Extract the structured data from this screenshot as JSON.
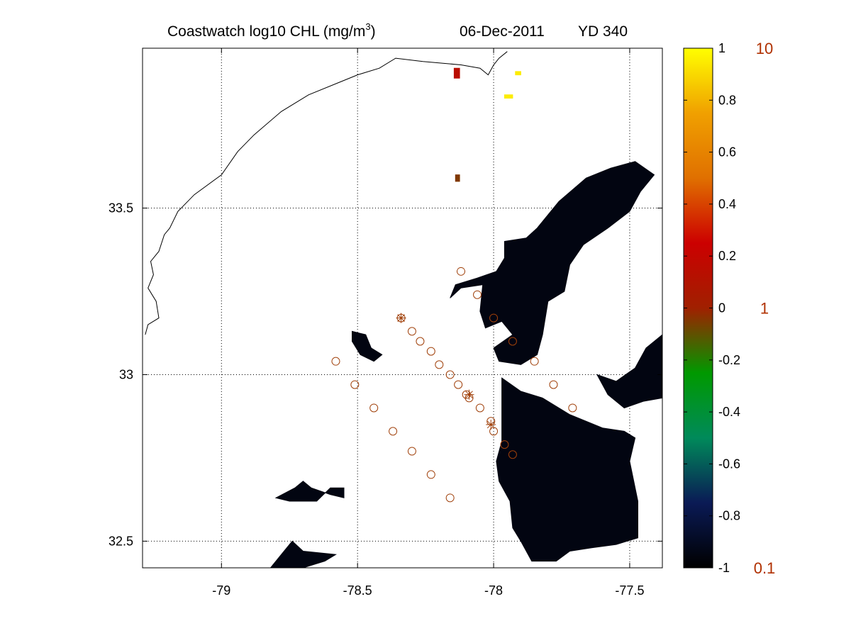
{
  "title": {
    "main": "Coastwatch  log10  CHL (mg/m",
    "superscript": "3",
    "close": ")",
    "date": "06-Dec-2011",
    "yearday": "YD 340"
  },
  "chart_data": {
    "type": "map",
    "x_axis": {
      "range": [
        -79.29,
        -77.38
      ],
      "ticks": [
        -79,
        -78.5,
        -78,
        -77.5
      ],
      "tick_labels": [
        "-79",
        "-78.5",
        "-78",
        "-77.5"
      ],
      "grid": true
    },
    "y_axis": {
      "range": [
        32.42,
        33.98
      ],
      "ticks": [
        32.5,
        33,
        33.5
      ],
      "tick_labels": [
        "32.5",
        "33",
        "33.5"
      ],
      "grid": true
    },
    "colorbar": {
      "range": [
        -1,
        1
      ],
      "ticks": [
        1,
        0.8,
        0.6,
        0.4,
        0.2,
        0,
        -0.2,
        -0.4,
        -0.6,
        -0.8,
        -1
      ],
      "tick_labels": [
        "1",
        "0.8",
        "0.6",
        "0.4",
        "0.2",
        "0",
        "-0.2",
        "-0.4",
        "-0.6",
        "-0.8",
        "-1"
      ],
      "secondary_labels": [
        {
          "value": 1,
          "label": "10"
        },
        {
          "value": 0,
          "label": "1"
        },
        {
          "value": -1,
          "label": "0.1"
        }
      ],
      "secondary_label_color": "#b03000",
      "colors": [
        "#000000",
        "#0a1a55",
        "#008a5a",
        "#009900",
        "#a02000",
        "#cc0000",
        "#e07000",
        "#f0a000",
        "#ffff00"
      ]
    },
    "stations": {
      "marker": "circle",
      "color": "#a0400a",
      "points": [
        [
          -78.12,
          33.31
        ],
        [
          -78.06,
          33.24
        ],
        [
          -78.0,
          33.17
        ],
        [
          -77.93,
          33.1
        ],
        [
          -77.85,
          33.04
        ],
        [
          -77.78,
          32.97
        ],
        [
          -77.71,
          32.9
        ],
        [
          -78.34,
          33.17
        ],
        [
          -78.3,
          33.13
        ],
        [
          -78.27,
          33.1
        ],
        [
          -78.23,
          33.07
        ],
        [
          -78.2,
          33.03
        ],
        [
          -78.16,
          33.0
        ],
        [
          -78.13,
          32.97
        ],
        [
          -78.1,
          32.94
        ],
        [
          -78.09,
          32.93
        ],
        [
          -78.05,
          32.9
        ],
        [
          -78.01,
          32.86
        ],
        [
          -78.0,
          32.83
        ],
        [
          -77.96,
          32.79
        ],
        [
          -77.93,
          32.76
        ],
        [
          -78.58,
          33.04
        ],
        [
          -78.51,
          32.97
        ],
        [
          -78.44,
          32.9
        ],
        [
          -78.37,
          32.83
        ],
        [
          -78.3,
          32.77
        ],
        [
          -78.23,
          32.7
        ],
        [
          -78.16,
          32.63
        ]
      ],
      "starred": [
        [
          -78.34,
          33.17
        ],
        [
          -78.09,
          32.94
        ],
        [
          -78.01,
          32.85
        ]
      ]
    },
    "chl_patches": [
      {
        "value": -0.95,
        "outline": [
          [
            -77.96,
            33.4
          ],
          [
            -77.88,
            33.41
          ],
          [
            -77.84,
            33.44
          ],
          [
            -77.76,
            33.52
          ],
          [
            -77.66,
            33.59
          ],
          [
            -77.57,
            33.62
          ],
          [
            -77.48,
            33.64
          ],
          [
            -77.41,
            33.6
          ],
          [
            -77.46,
            33.55
          ],
          [
            -77.5,
            33.49
          ],
          [
            -77.58,
            33.44
          ],
          [
            -77.67,
            33.39
          ],
          [
            -77.72,
            33.33
          ],
          [
            -77.74,
            33.25
          ],
          [
            -77.8,
            33.22
          ],
          [
            -77.82,
            33.12
          ],
          [
            -77.84,
            33.06
          ],
          [
            -77.9,
            33.03
          ],
          [
            -77.98,
            33.04
          ],
          [
            -78.0,
            33.08
          ],
          [
            -77.93,
            33.12
          ],
          [
            -77.97,
            33.16
          ],
          [
            -78.03,
            33.14
          ],
          [
            -78.05,
            33.19
          ],
          [
            -78.04,
            33.27
          ],
          [
            -78.12,
            33.26
          ],
          [
            -78.16,
            33.23
          ],
          [
            -78.14,
            33.27
          ],
          [
            -78.06,
            33.29
          ],
          [
            -77.99,
            33.31
          ],
          [
            -77.96,
            33.35
          ]
        ]
      },
      {
        "value": -0.95,
        "outline": [
          [
            -77.97,
            32.99
          ],
          [
            -77.9,
            32.95
          ],
          [
            -77.82,
            32.93
          ],
          [
            -77.72,
            32.88
          ],
          [
            -77.6,
            32.84
          ],
          [
            -77.52,
            32.83
          ],
          [
            -77.48,
            32.81
          ],
          [
            -77.5,
            32.74
          ],
          [
            -77.47,
            32.62
          ],
          [
            -77.47,
            32.51
          ],
          [
            -77.55,
            32.49
          ],
          [
            -77.64,
            32.48
          ],
          [
            -77.72,
            32.47
          ],
          [
            -77.77,
            32.44
          ],
          [
            -77.86,
            32.44
          ],
          [
            -77.9,
            32.5
          ],
          [
            -77.93,
            32.54
          ],
          [
            -77.94,
            32.62
          ],
          [
            -77.98,
            32.68
          ],
          [
            -77.99,
            32.74
          ],
          [
            -77.97,
            32.8
          ],
          [
            -77.97,
            32.88
          ],
          [
            -77.97,
            32.95
          ]
        ]
      },
      {
        "value": -0.95,
        "outline": [
          [
            -77.62,
            33.0
          ],
          [
            -77.55,
            32.98
          ],
          [
            -77.48,
            33.02
          ],
          [
            -77.44,
            33.08
          ],
          [
            -77.38,
            33.12
          ],
          [
            -77.38,
            32.93
          ],
          [
            -77.45,
            32.92
          ],
          [
            -77.52,
            32.9
          ],
          [
            -77.58,
            32.94
          ]
        ]
      },
      {
        "value": -0.95,
        "outline": [
          [
            -78.52,
            33.13
          ],
          [
            -78.47,
            33.12
          ],
          [
            -78.45,
            33.08
          ],
          [
            -78.41,
            33.06
          ],
          [
            -78.44,
            33.04
          ],
          [
            -78.49,
            33.06
          ],
          [
            -78.52,
            33.1
          ]
        ]
      },
      {
        "value": -0.95,
        "outline": [
          [
            -78.7,
            32.68
          ],
          [
            -78.67,
            32.66
          ],
          [
            -78.6,
            32.64
          ],
          [
            -78.55,
            32.63
          ],
          [
            -78.55,
            32.66
          ],
          [
            -78.6,
            32.66
          ],
          [
            -78.65,
            32.62
          ],
          [
            -78.75,
            32.62
          ],
          [
            -78.8,
            32.63
          ],
          [
            -78.73,
            32.66
          ]
        ]
      },
      {
        "value": -0.95,
        "outline": [
          [
            -78.74,
            32.5
          ],
          [
            -78.7,
            32.47
          ],
          [
            -78.58,
            32.46
          ],
          [
            -78.62,
            32.44
          ],
          [
            -78.7,
            32.42
          ],
          [
            -78.82,
            32.42
          ],
          [
            -78.78,
            32.46
          ]
        ]
      },
      {
        "value": 0.15,
        "outline": [
          [
            -78.145,
            33.92
          ],
          [
            -78.125,
            33.92
          ],
          [
            -78.125,
            33.89
          ],
          [
            -78.145,
            33.89
          ]
        ]
      },
      {
        "value": -0.05,
        "outline": [
          [
            -78.14,
            33.58
          ],
          [
            -78.125,
            33.58
          ],
          [
            -78.125,
            33.6
          ],
          [
            -78.14,
            33.6
          ]
        ]
      },
      {
        "value": 0.95,
        "outline": [
          [
            -77.92,
            33.9
          ],
          [
            -77.9,
            33.9
          ],
          [
            -77.9,
            33.91
          ],
          [
            -77.92,
            33.91
          ]
        ]
      },
      {
        "value": 0.95,
        "outline": [
          [
            -77.96,
            33.83
          ],
          [
            -77.93,
            33.83
          ],
          [
            -77.93,
            33.84
          ],
          [
            -77.96,
            33.84
          ]
        ]
      }
    ],
    "coastline": [
      [
        -79.28,
        33.12
      ],
      [
        -79.27,
        33.15
      ],
      [
        -79.23,
        33.17
      ],
      [
        -79.24,
        33.22
      ],
      [
        -79.27,
        33.26
      ],
      [
        -79.25,
        33.3
      ],
      [
        -79.26,
        33.34
      ],
      [
        -79.23,
        33.37
      ],
      [
        -79.21,
        33.42
      ],
      [
        -79.19,
        33.44
      ],
      [
        -79.16,
        33.49
      ],
      [
        -79.1,
        33.54
      ],
      [
        -79.0,
        33.6
      ],
      [
        -78.94,
        33.67
      ],
      [
        -78.88,
        33.72
      ],
      [
        -78.78,
        33.79
      ],
      [
        -78.68,
        33.84
      ],
      [
        -78.56,
        33.88
      ],
      [
        -78.5,
        33.9
      ],
      [
        -78.42,
        33.92
      ],
      [
        -78.36,
        33.95
      ],
      [
        -78.26,
        33.94
      ],
      [
        -78.12,
        33.93
      ],
      [
        -78.05,
        33.92
      ],
      [
        -78.02,
        33.9
      ],
      [
        -78.0,
        33.93
      ],
      [
        -77.98,
        33.95
      ],
      [
        -77.95,
        33.97
      ]
    ]
  }
}
